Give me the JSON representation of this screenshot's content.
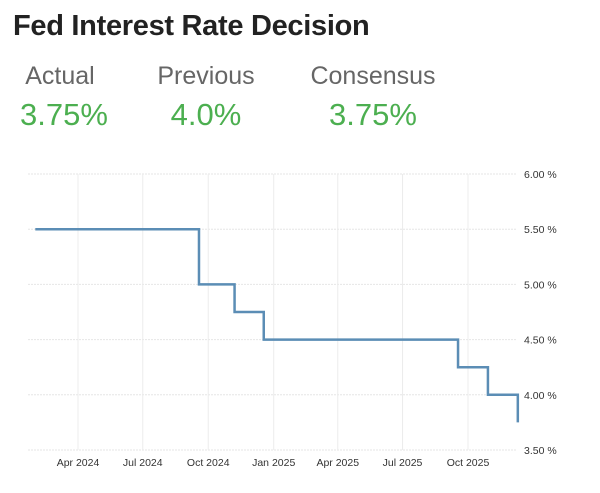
{
  "title": "Fed Interest Rate Decision",
  "stats": [
    {
      "label": "Actual",
      "value": "3.75%"
    },
    {
      "label": "Previous",
      "value": "4.0%"
    },
    {
      "label": "Consensus",
      "value": "3.75%"
    }
  ],
  "colors": {
    "value": "#4caf50",
    "line": "#5b8db5"
  },
  "chart_data": {
    "type": "line",
    "step": true,
    "title": "",
    "xlabel": "",
    "ylabel": "",
    "ylim": [
      3.5,
      6.0
    ],
    "yticks": [
      "6.00 %",
      "5.50 %",
      "5.00 %",
      "4.50 %",
      "4.00 %",
      "3.50 %"
    ],
    "ytick_values": [
      6.0,
      5.5,
      5.0,
      4.5,
      4.0,
      3.5
    ],
    "xticks": [
      "Apr 2024",
      "Jul 2024",
      "Oct 2024",
      "Jan 2025",
      "Apr 2025",
      "Jul 2025",
      "Oct 2025"
    ],
    "xtick_dates": [
      "2024-04-01",
      "2024-07-01",
      "2024-10-01",
      "2025-01-01",
      "2025-04-01",
      "2025-07-01",
      "2025-10-01"
    ],
    "grid": true,
    "series": [
      {
        "x": [
          "2024-02-01",
          "2024-09-18",
          "2024-11-07",
          "2024-12-18",
          "2025-09-17",
          "2025-10-29",
          "2025-12-10"
        ],
        "y": [
          5.5,
          5.0,
          4.75,
          4.5,
          4.25,
          4.0,
          3.75
        ]
      }
    ]
  }
}
